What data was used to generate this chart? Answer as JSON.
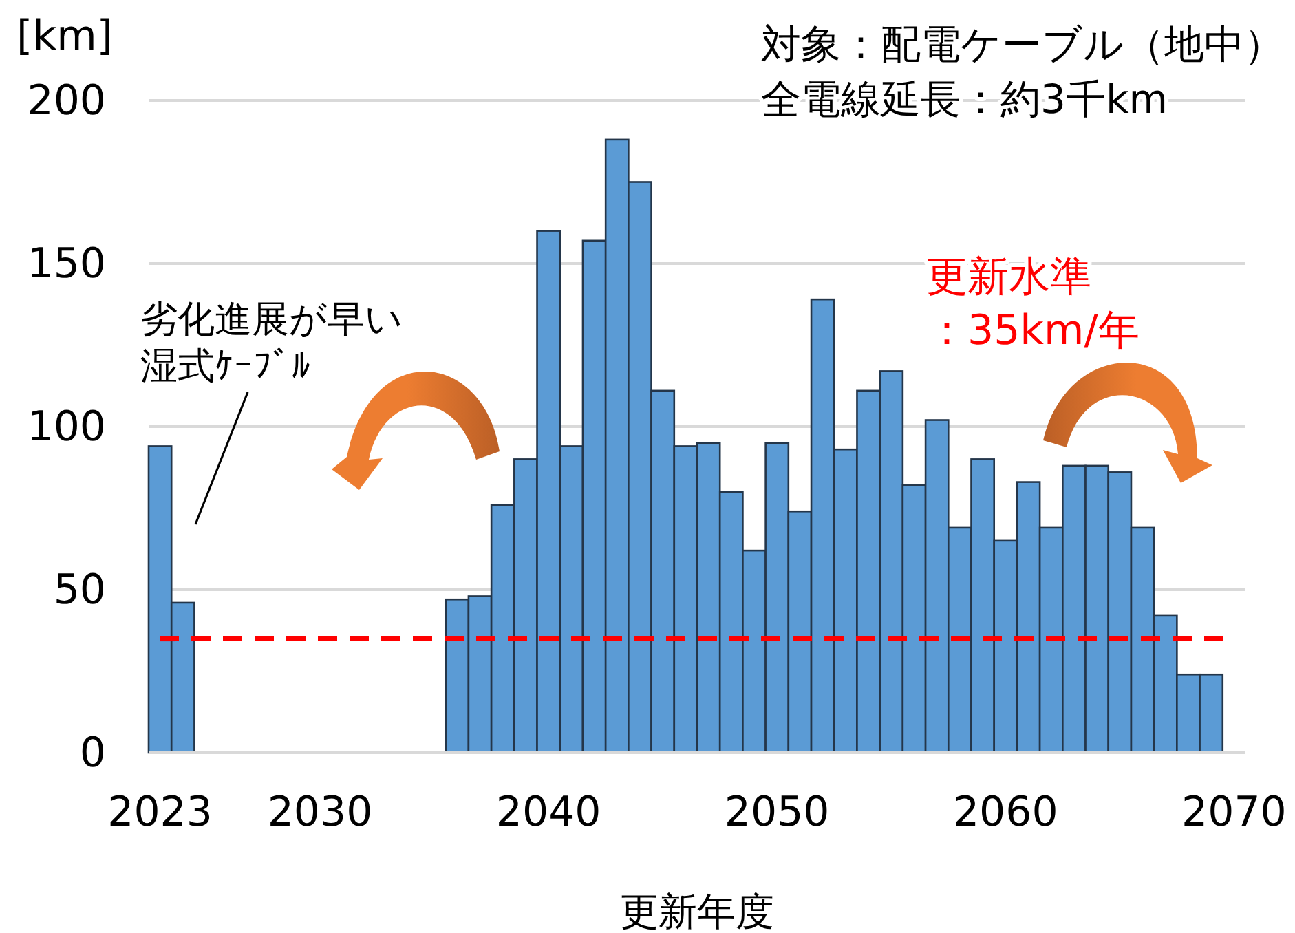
{
  "chart_data": {
    "type": "bar",
    "xlabel": "更新年度",
    "ylabel": "[km]",
    "x": [
      2023,
      2024,
      2036,
      2037,
      2038,
      2039,
      2040,
      2041,
      2042,
      2043,
      2044,
      2045,
      2046,
      2047,
      2048,
      2049,
      2050,
      2051,
      2052,
      2053,
      2054,
      2055,
      2056,
      2057,
      2058,
      2059,
      2060,
      2061,
      2062,
      2063,
      2064,
      2065,
      2066,
      2067,
      2068,
      2069
    ],
    "values": [
      94,
      46,
      47,
      48,
      76,
      90,
      160,
      94,
      157,
      188,
      175,
      111,
      94,
      95,
      80,
      62,
      95,
      74,
      139,
      93,
      111,
      117,
      82,
      102,
      69,
      90,
      65,
      83,
      69,
      88,
      88,
      86,
      69,
      42,
      24,
      24
    ],
    "color": "#5b9bd5",
    "xlim": [
      2022.5,
      2070.5
    ],
    "xticks": [
      2023,
      2030,
      2040,
      2050,
      2060,
      2070
    ],
    "ylim": [
      0,
      200
    ],
    "yticks": [
      0,
      50,
      100,
      150,
      200
    ],
    "grid": "y",
    "ref_lines": [
      {
        "axis": "y",
        "value": 35,
        "label": "更新水準：35km/年",
        "color": "#ff0000",
        "line_style": "dashed"
      }
    ],
    "annotations": [
      "対象：配電ケーブル（地中）",
      "全電線延長：約3千km",
      "劣化進展が早い湿式ｹｰﾌﾞﾙ"
    ]
  }
}
